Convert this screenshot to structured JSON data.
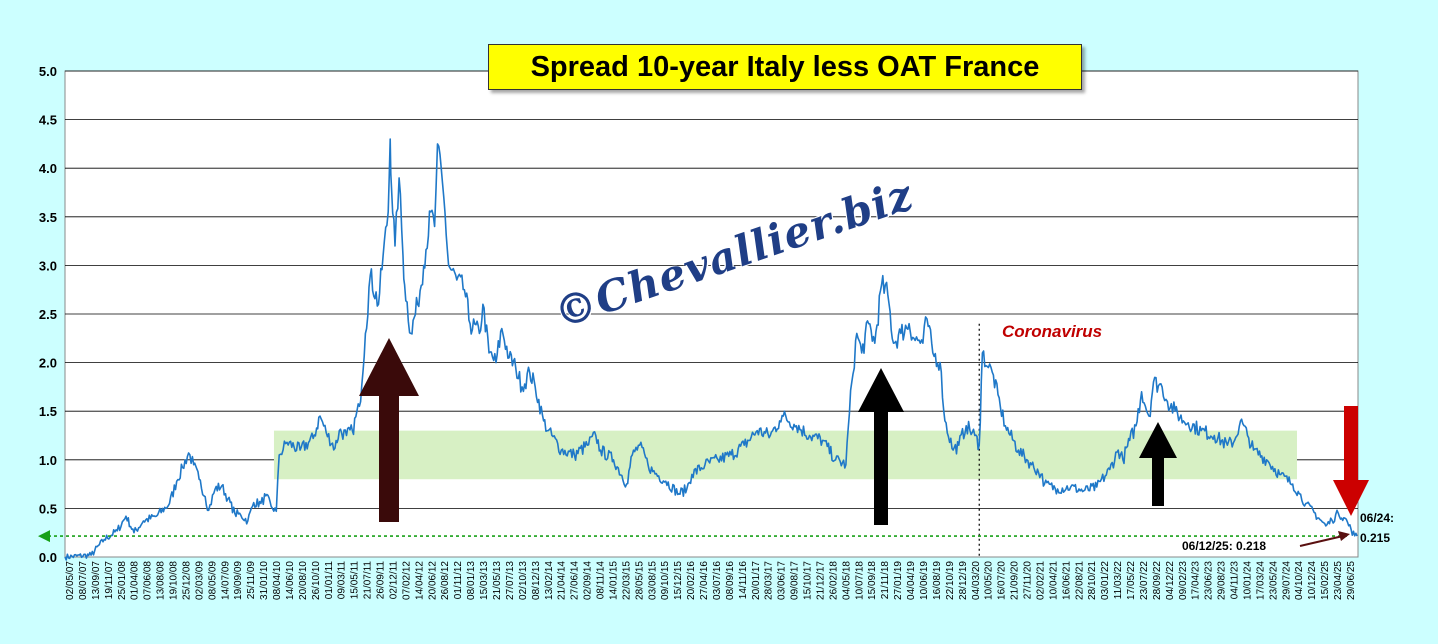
{
  "chart_data": {
    "type": "line",
    "title": "Spread 10-year Italy less OAT France",
    "ylim": [
      0,
      5
    ],
    "yticks": [
      "0.0",
      "0.5",
      "1.0",
      "1.5",
      "2.0",
      "2.5",
      "3.0",
      "3.5",
      "4.0",
      "4.5",
      "5.0"
    ],
    "x_tick_labels": [
      "02/05/07",
      "08/07/07",
      "13/09/07",
      "19/11/07",
      "25/01/08",
      "01/04/08",
      "07/06/08",
      "13/08/08",
      "19/10/08",
      "25/12/08",
      "02/03/09",
      "08/05/09",
      "14/07/09",
      "19/09/09",
      "25/11/09",
      "31/01/10",
      "08/04/10",
      "14/06/10",
      "20/08/10",
      "26/10/10",
      "01/01/11",
      "09/03/11",
      "15/05/11",
      "21/07/11",
      "26/09/11",
      "02/12/11",
      "07/02/12",
      "14/04/12",
      "20/06/12",
      "26/08/12",
      "01/11/12",
      "08/01/13",
      "15/03/13",
      "21/05/13",
      "27/07/13",
      "02/10/13",
      "08/12/13",
      "13/02/14",
      "21/04/14",
      "27/06/14",
      "02/09/14",
      "08/11/14",
      "14/01/15",
      "22/03/15",
      "28/05/15",
      "03/08/15",
      "09/10/15",
      "15/12/15",
      "20/02/16",
      "27/04/16",
      "03/07/16",
      "08/09/16",
      "14/11/16",
      "20/01/17",
      "28/03/17",
      "03/06/17",
      "09/08/17",
      "15/10/17",
      "21/12/17",
      "26/02/18",
      "04/05/18",
      "10/07/18",
      "15/09/18",
      "21/11/18",
      "27/01/19",
      "04/04/19",
      "10/06/19",
      "16/08/19",
      "22/10/19",
      "28/12/19",
      "04/03/20",
      "10/05/20",
      "16/07/20",
      "21/09/20",
      "27/11/20",
      "02/02/21",
      "10/04/21",
      "16/06/21",
      "22/08/21",
      "28/10/21",
      "03/01/22",
      "11/03/22",
      "17/05/22",
      "23/07/22",
      "28/09/22",
      "04/12/22",
      "09/02/23",
      "17/04/23",
      "23/06/23",
      "29/08/23",
      "04/11/23",
      "10/01/24",
      "17/03/24",
      "23/05/24",
      "29/07/24",
      "04/10/24",
      "10/12/24",
      "15/02/25",
      "23/04/25",
      "29/06/25"
    ],
    "series": [
      {
        "color": "#1f78c8",
        "points": [
          [
            "2007-05-02",
            0.0
          ],
          [
            "2007-09-13",
            0.02
          ],
          [
            "2007-11-19",
            0.18
          ],
          [
            "2008-01-25",
            0.27
          ],
          [
            "2008-03-10",
            0.42
          ],
          [
            "2008-04-20",
            0.25
          ],
          [
            "2008-06-07",
            0.37
          ],
          [
            "2008-08-13",
            0.42
          ],
          [
            "2008-10-19",
            0.55
          ],
          [
            "2008-11-25",
            0.78
          ],
          [
            "2008-12-25",
            0.92
          ],
          [
            "2009-01-25",
            1.07
          ],
          [
            "2009-02-20",
            0.95
          ],
          [
            "2009-03-20",
            0.8
          ],
          [
            "2009-04-20",
            0.62
          ],
          [
            "2009-05-08",
            0.48
          ],
          [
            "2009-06-10",
            0.7
          ],
          [
            "2009-07-14",
            0.73
          ],
          [
            "2009-08-15",
            0.6
          ],
          [
            "2009-09-19",
            0.45
          ],
          [
            "2009-10-20",
            0.43
          ],
          [
            "2009-11-25",
            0.37
          ],
          [
            "2009-12-25",
            0.56
          ],
          [
            "2010-01-31",
            0.55
          ],
          [
            "2010-02-25",
            0.63
          ],
          [
            "2010-03-25",
            0.52
          ],
          [
            "2010-04-20",
            0.47
          ],
          [
            "2010-05-05",
            1.05
          ],
          [
            "2010-06-14",
            1.18
          ],
          [
            "2010-08-20",
            1.1
          ],
          [
            "2010-10-26",
            1.22
          ],
          [
            "2010-11-30",
            1.45
          ],
          [
            "2011-01-01",
            1.28
          ],
          [
            "2011-02-15",
            1.12
          ],
          [
            "2011-03-09",
            1.3
          ],
          [
            "2011-04-15",
            1.25
          ],
          [
            "2011-05-15",
            1.3
          ],
          [
            "2011-06-20",
            1.55
          ],
          [
            "2011-07-21",
            2.3
          ],
          [
            "2011-08-15",
            2.9
          ],
          [
            "2011-09-26",
            2.6
          ],
          [
            "2011-10-20",
            3.1
          ],
          [
            "2011-11-15",
            3.55
          ],
          [
            "2011-11-25",
            4.3
          ],
          [
            "2011-12-02",
            3.8
          ],
          [
            "2011-12-20",
            3.2
          ],
          [
            "2012-01-10",
            3.9
          ],
          [
            "2012-01-30",
            3.1
          ],
          [
            "2012-02-07",
            2.8
          ],
          [
            "2012-03-10",
            2.3
          ],
          [
            "2012-04-14",
            2.6
          ],
          [
            "2012-05-15",
            3.0
          ],
          [
            "2012-06-20",
            3.55
          ],
          [
            "2012-07-10",
            3.4
          ],
          [
            "2012-07-25",
            4.25
          ],
          [
            "2012-08-26",
            3.7
          ],
          [
            "2012-09-20",
            3.0
          ],
          [
            "2012-11-01",
            2.85
          ],
          [
            "2012-12-10",
            2.75
          ],
          [
            "2013-01-08",
            2.4
          ],
          [
            "2013-02-25",
            2.3
          ],
          [
            "2013-03-15",
            2.6
          ],
          [
            "2013-04-15",
            2.1
          ],
          [
            "2013-05-21",
            2.0
          ],
          [
            "2013-06-20",
            2.35
          ],
          [
            "2013-07-27",
            2.05
          ],
          [
            "2013-08-30",
            1.95
          ],
          [
            "2013-10-02",
            1.75
          ],
          [
            "2013-11-10",
            1.9
          ],
          [
            "2013-12-08",
            1.75
          ],
          [
            "2014-01-20",
            1.4
          ],
          [
            "2014-02-13",
            1.3
          ],
          [
            "2014-04-21",
            1.1
          ],
          [
            "2014-06-27",
            1.05
          ],
          [
            "2014-09-02",
            1.15
          ],
          [
            "2014-10-15",
            1.25
          ],
          [
            "2014-11-08",
            1.1
          ],
          [
            "2015-01-14",
            1.0
          ],
          [
            "2015-03-22",
            0.75
          ],
          [
            "2015-04-20",
            1.05
          ],
          [
            "2015-05-28",
            1.15
          ],
          [
            "2015-07-10",
            0.95
          ],
          [
            "2015-08-03",
            0.88
          ],
          [
            "2015-10-09",
            0.78
          ],
          [
            "2015-12-15",
            0.65
          ],
          [
            "2016-01-25",
            0.7
          ],
          [
            "2016-02-20",
            0.85
          ],
          [
            "2016-04-27",
            0.95
          ],
          [
            "2016-07-03",
            1.0
          ],
          [
            "2016-09-08",
            1.05
          ],
          [
            "2016-11-14",
            1.15
          ],
          [
            "2017-01-20",
            1.3
          ],
          [
            "2017-03-28",
            1.25
          ],
          [
            "2017-05-15",
            1.4
          ],
          [
            "2017-06-03",
            1.45
          ],
          [
            "2017-08-09",
            1.35
          ],
          [
            "2017-10-15",
            1.25
          ],
          [
            "2017-12-21",
            1.2
          ],
          [
            "2018-02-26",
            1.0
          ],
          [
            "2018-04-20",
            0.95
          ],
          [
            "2018-05-20",
            1.8
          ],
          [
            "2018-06-15",
            2.3
          ],
          [
            "2018-07-10",
            2.1
          ],
          [
            "2018-08-15",
            2.4
          ],
          [
            "2018-09-15",
            2.2
          ],
          [
            "2018-10-20",
            2.8
          ],
          [
            "2018-11-21",
            2.7
          ],
          [
            "2018-12-20",
            2.2
          ],
          [
            "2019-01-27",
            2.3
          ],
          [
            "2019-03-10",
            2.4
          ],
          [
            "2019-04-04",
            2.25
          ],
          [
            "2019-05-20",
            2.2
          ],
          [
            "2019-06-10",
            2.45
          ],
          [
            "2019-07-10",
            2.1
          ],
          [
            "2019-08-16",
            2.0
          ],
          [
            "2019-09-10",
            1.4
          ],
          [
            "2019-10-22",
            1.1
          ],
          [
            "2019-11-20",
            1.15
          ],
          [
            "2019-12-28",
            1.35
          ],
          [
            "2020-02-10",
            1.25
          ],
          [
            "2020-03-04",
            1.15
          ],
          [
            "2020-03-20",
            2.1
          ],
          [
            "2020-04-20",
            1.95
          ],
          [
            "2020-05-10",
            1.9
          ],
          [
            "2020-06-20",
            1.55
          ],
          [
            "2020-07-16",
            1.35
          ],
          [
            "2020-09-21",
            1.1
          ],
          [
            "2020-11-27",
            0.95
          ],
          [
            "2021-01-15",
            0.85
          ],
          [
            "2021-02-02",
            0.75
          ],
          [
            "2021-04-10",
            0.7
          ],
          [
            "2021-06-16",
            0.72
          ],
          [
            "2021-08-22",
            0.68
          ],
          [
            "2021-10-28",
            0.72
          ],
          [
            "2022-01-03",
            0.9
          ],
          [
            "2022-02-15",
            1.1
          ],
          [
            "2022-03-11",
            1.0
          ],
          [
            "2022-04-15",
            1.2
          ],
          [
            "2022-05-17",
            1.35
          ],
          [
            "2022-06-15",
            1.7
          ],
          [
            "2022-07-23",
            1.45
          ],
          [
            "2022-08-15",
            1.8
          ],
          [
            "2022-09-28",
            1.75
          ],
          [
            "2022-10-25",
            1.6
          ],
          [
            "2022-12-04",
            1.5
          ],
          [
            "2023-01-15",
            1.4
          ],
          [
            "2023-02-09",
            1.38
          ],
          [
            "2023-04-17",
            1.3
          ],
          [
            "2023-06-23",
            1.25
          ],
          [
            "2023-08-29",
            1.15
          ],
          [
            "2023-10-05",
            1.2
          ],
          [
            "2023-11-04",
            1.4
          ],
          [
            "2023-12-10",
            1.25
          ],
          [
            "2024-01-10",
            1.1
          ],
          [
            "2024-03-17",
            1.0
          ],
          [
            "2024-05-23",
            0.85
          ],
          [
            "2024-07-29",
            0.75
          ],
          [
            "2024-09-01",
            0.65
          ],
          [
            "2024-10-04",
            0.55
          ],
          [
            "2024-12-10",
            0.4
          ],
          [
            "2025-01-15",
            0.32
          ],
          [
            "2025-02-15",
            0.38
          ],
          [
            "2025-03-20",
            0.45
          ],
          [
            "2025-04-23",
            0.4
          ],
          [
            "2025-05-25",
            0.28
          ],
          [
            "2025-06-12",
            0.218
          ],
          [
            "2025-06-24",
            0.215
          ]
        ]
      }
    ],
    "annotations": {
      "watermark": "©Chevallier.biz",
      "event_label": "Coronavirus",
      "event_date": "2020-03-04",
      "band_range": [
        0.8,
        1.3
      ],
      "last_value_label": "06/24:\n0.215",
      "prev_value_label": "06/12/25: 0.218"
    },
    "grid": true,
    "legend": "none"
  },
  "colors": {
    "background": "#ccffff",
    "plot_area": "#ffffff",
    "line": "#1f78c8",
    "band": "#d7f0c4",
    "title_box": "#ffff00",
    "arrow_dark_red": "#3a0a0a",
    "arrow_black": "#000000",
    "arrow_red": "#cc0000",
    "covid_label": "#c00000",
    "last_value_guide": "#18a018"
  }
}
